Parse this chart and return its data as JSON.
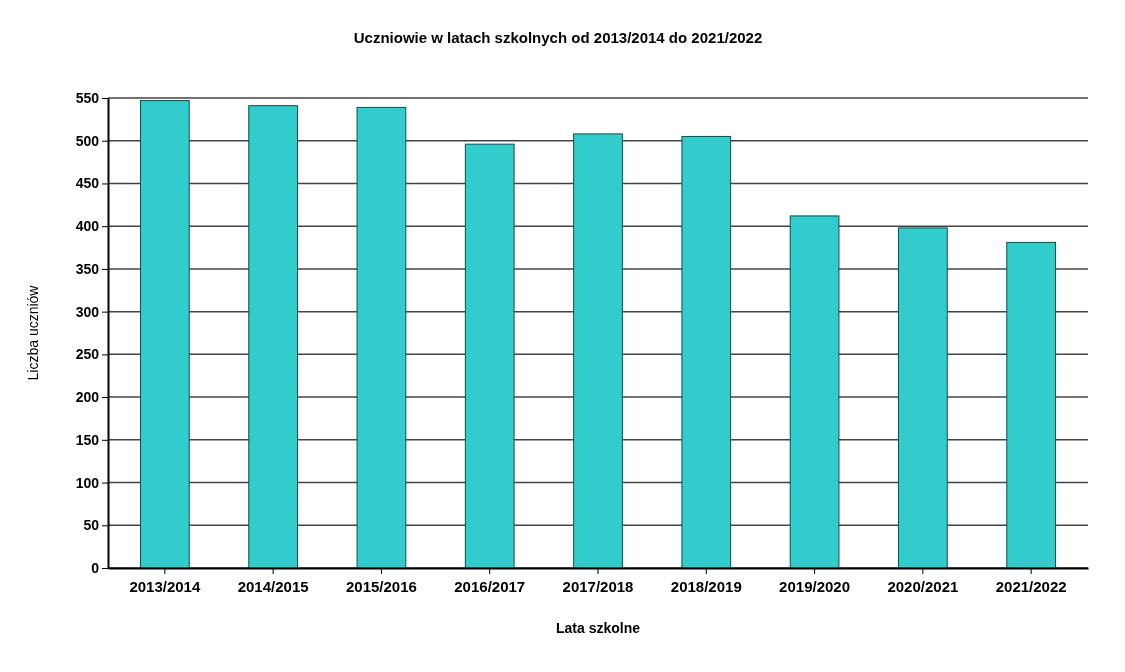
{
  "chart_data": {
    "type": "bar",
    "title": "Uczniowie w latach szkolnych od 2013/2014 do 2021/2022",
    "xlabel": "Lata szkolne",
    "ylabel": "Liczba uczniów",
    "categories": [
      "2013/2014",
      "2014/2015",
      "2015/2016",
      "2016/2017",
      "2017/2018",
      "2018/2019",
      "2019/2020",
      "2020/2021",
      "2021/2022"
    ],
    "values": [
      547,
      541,
      539,
      496,
      508,
      505,
      412,
      398,
      381
    ],
    "color": "#33cccc",
    "ylim": [
      0,
      550
    ],
    "yticks": [
      0,
      50,
      100,
      150,
      200,
      250,
      300,
      350,
      400,
      450,
      500,
      550
    ],
    "grid": "y"
  }
}
